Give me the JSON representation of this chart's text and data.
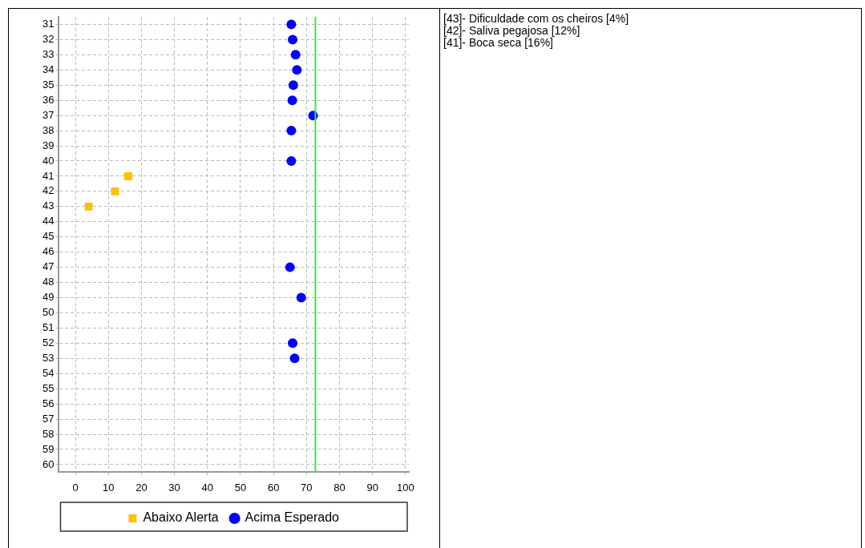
{
  "chart_data": {
    "type": "scatter",
    "orientation": "horizontal",
    "categories": [
      "31",
      "32",
      "33",
      "34",
      "35",
      "36",
      "37",
      "38",
      "39",
      "40",
      "41",
      "42",
      "43",
      "44",
      "45",
      "46",
      "47",
      "48",
      "49",
      "50",
      "51",
      "52",
      "53",
      "54",
      "55",
      "56",
      "57",
      "58",
      "59",
      "60"
    ],
    "series": [
      {
        "name": "Abaixo Alerta",
        "color": "#ffc000",
        "marker": "square",
        "values": [
          null,
          null,
          null,
          null,
          null,
          null,
          null,
          null,
          null,
          null,
          16,
          12,
          4,
          null,
          null,
          null,
          null,
          null,
          null,
          null,
          null,
          null,
          null,
          null,
          null,
          null,
          null,
          null,
          null,
          null
        ]
      },
      {
        "name": "Acima Esperado",
        "color": "#0000ff",
        "marker": "circle",
        "values": [
          65.4,
          65.8,
          66.7,
          67.1,
          66,
          65.7,
          72,
          65.4,
          null,
          65.4,
          null,
          null,
          null,
          null,
          null,
          null,
          65,
          null,
          68.4,
          null,
          null,
          65.8,
          66.4,
          null,
          null,
          null,
          null,
          null,
          null,
          null
        ]
      }
    ],
    "xlim": [
      -5,
      101
    ],
    "xticks": [
      0,
      10,
      20,
      30,
      40,
      50,
      60,
      70,
      80,
      90,
      100
    ],
    "ref_lines": [
      {
        "axis": "x",
        "value": 72.7,
        "color": "#33ee33"
      }
    ],
    "grid": true,
    "legend": "bottom",
    "annotations": [
      "[43]- Dificuldade com os cheiros [4%]",
      "[42]- Saliva pegajosa [12%]",
      "[41]- Boca seca [16%]"
    ]
  }
}
